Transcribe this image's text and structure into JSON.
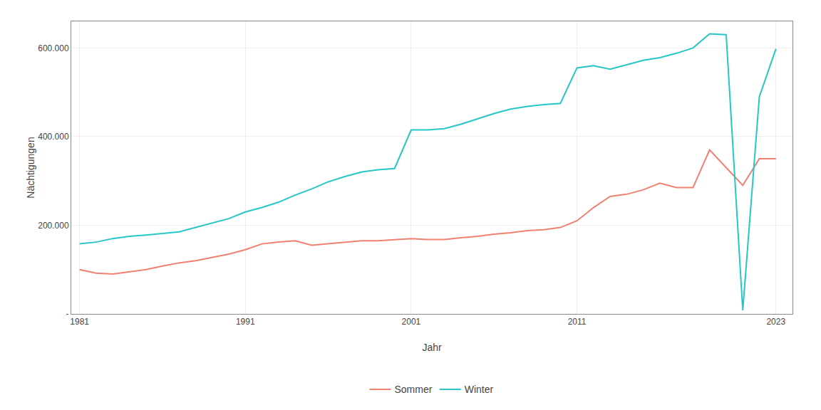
{
  "chart_data": {
    "type": "line",
    "xlabel": "Jahr",
    "ylabel": "Nächtigungen",
    "x": [
      1981,
      1982,
      1983,
      1984,
      1985,
      1986,
      1987,
      1988,
      1989,
      1990,
      1991,
      1992,
      1993,
      1994,
      1995,
      1996,
      1997,
      1998,
      1999,
      2000,
      2001,
      2002,
      2003,
      2004,
      2005,
      2006,
      2007,
      2008,
      2009,
      2010,
      2011,
      2012,
      2013,
      2014,
      2015,
      2016,
      2017,
      2018,
      2019,
      2020,
      2021,
      2022,
      2023
    ],
    "series": [
      {
        "name": "Sommer",
        "color": "#F08070",
        "values": [
          100000,
          92000,
          90000,
          95000,
          100000,
          108000,
          115000,
          120000,
          128000,
          135000,
          145000,
          158000,
          162000,
          165000,
          155000,
          158000,
          162000,
          165000,
          165000,
          168000,
          170000,
          168000,
          168000,
          172000,
          175000,
          180000,
          183000,
          188000,
          190000,
          195000,
          210000,
          240000,
          265000,
          270000,
          280000,
          295000,
          285000,
          285000,
          370000,
          330000,
          290000,
          350000,
          350000
        ]
      },
      {
        "name": "Winter",
        "color": "#26C6C6",
        "values": [
          158000,
          162000,
          170000,
          175000,
          178000,
          182000,
          185000,
          195000,
          205000,
          215000,
          230000,
          240000,
          252000,
          268000,
          282000,
          298000,
          310000,
          320000,
          325000,
          328000,
          415000,
          415000,
          418000,
          428000,
          440000,
          452000,
          462000,
          468000,
          472000,
          475000,
          555000,
          560000,
          552000,
          562000,
          572000,
          578000,
          588000,
          600000,
          632000,
          630000,
          8000,
          490000,
          598000
        ]
      }
    ],
    "xlim": [
      1980.5,
      2024
    ],
    "ylim": [
      0,
      660000
    ],
    "xticks": [
      1981,
      1991,
      2001,
      2011,
      2023
    ],
    "yticks": [
      {
        "value": 0,
        "label": "-"
      },
      {
        "value": 200000,
        "label": "200.000"
      },
      {
        "value": 400000,
        "label": "400.000"
      },
      {
        "value": 600000,
        "label": "600.000"
      }
    ],
    "grid": true,
    "legend": "bottom"
  }
}
